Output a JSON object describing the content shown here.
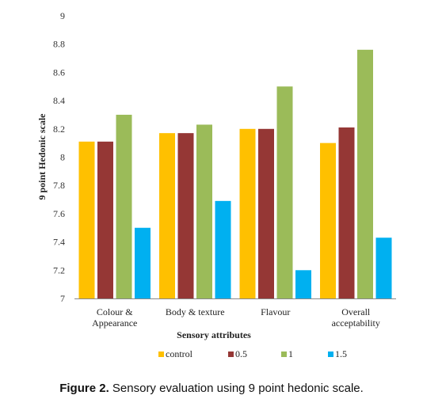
{
  "chart_data": {
    "type": "bar",
    "categories": [
      [
        "Colour &",
        "Appearance"
      ],
      [
        "Body & texture"
      ],
      [
        "Flavour"
      ],
      [
        "Overall",
        "acceptability"
      ]
    ],
    "series": [
      {
        "name": "control",
        "color": "#ffc000",
        "values": [
          8.11,
          8.17,
          8.2,
          8.1
        ]
      },
      {
        "name": "0.5",
        "color": "#953735",
        "values": [
          8.11,
          8.17,
          8.2,
          8.21
        ]
      },
      {
        "name": "1",
        "color": "#9bbb59",
        "values": [
          8.3,
          8.23,
          8.5,
          8.76
        ]
      },
      {
        "name": "1.5",
        "color": "#00b0f0",
        "values": [
          7.5,
          7.69,
          7.2,
          7.43
        ]
      }
    ],
    "xlabel": "Sensory attributes",
    "ylabel": "9  point Hedonic scale",
    "ylim": [
      7,
      9
    ],
    "yticks": [
      "7",
      "7.2",
      "7.4",
      "7.6",
      "7.8",
      "8",
      "8.2",
      "8.4",
      "8.6",
      "8.8",
      "9"
    ],
    "grid": false,
    "legend_position": "bottom"
  },
  "caption": {
    "label": "Figure 2.",
    "text": "Sensory evaluation using 9 point hedonic scale."
  }
}
